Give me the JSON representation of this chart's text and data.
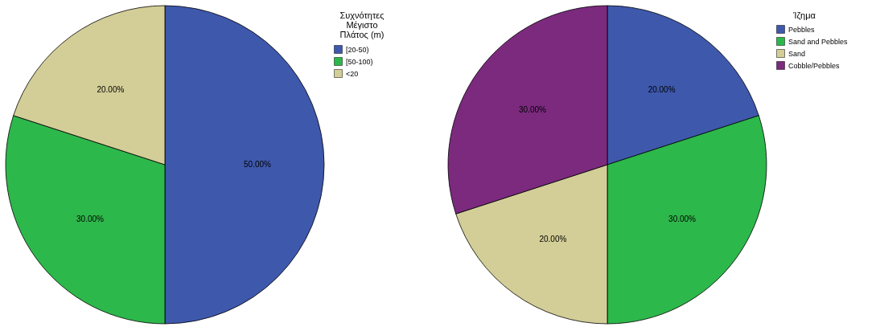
{
  "chart_data": [
    {
      "type": "pie",
      "legend_title": "Συχνότητες\nΜέγιστο\nΠλάτος (m)",
      "categories": [
        "[20-50)",
        "[50-100)",
        "<20"
      ],
      "values": [
        50,
        30,
        20
      ],
      "colors": [
        "#3e58ac",
        "#2db84b",
        "#d3ce97"
      ],
      "value_labels": [
        "50.00%",
        "30.00%",
        "20.00%"
      ],
      "legend": "top right"
    },
    {
      "type": "pie",
      "legend_title": "Ίζημα",
      "categories": [
        "Pebbles",
        "Sand and Pebbles",
        "Sand",
        "Cobble/Pebbles"
      ],
      "values": [
        20,
        30,
        20,
        30
      ],
      "colors": [
        "#3e58ac",
        "#2db84b",
        "#d3ce97",
        "#7b2a7e"
      ],
      "value_labels": [
        "20.00%",
        "30.00%",
        "20.00%",
        "30.00%"
      ],
      "legend": "top right"
    }
  ]
}
